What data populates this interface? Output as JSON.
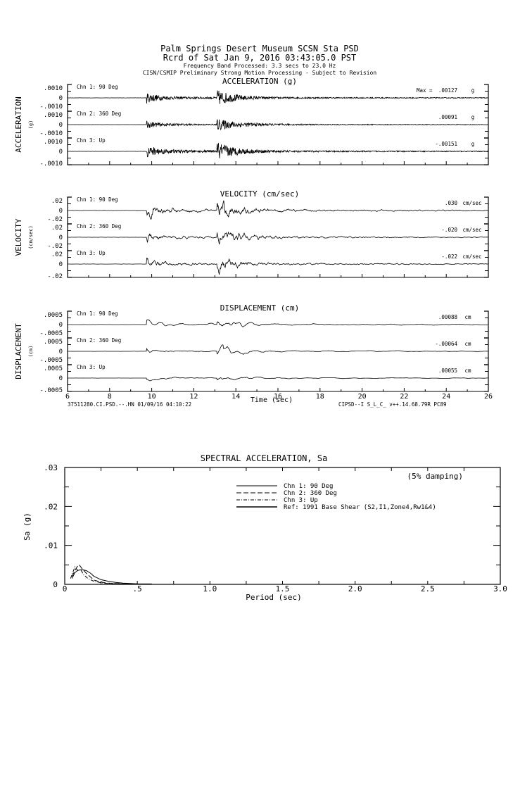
{
  "header": {
    "line1": "Palm Springs Desert Museum    SCSN Sta PSD",
    "line2": "Rcrd of Sat Jan  9, 2016 03:43:05.0 PST",
    "line3": "Frequency Band Processed: 3.3 secs to 23.0 Hz",
    "line4": "CISN/CSMIP Preliminary Strong Motion Processing - Subject to Revision"
  },
  "footer": {
    "left": "37511280.CI.PSD.--.HN 01/09/16 04:10:22",
    "right": "CIPSD--I  S_L_C_  v++.14.68.79R PC89"
  },
  "chart_data": [
    {
      "type": "line",
      "title": "ACCELERATION (g)",
      "ylabel": "ACCELERATION",
      "yunit": "(g)",
      "xlabel": "Time (sec)",
      "xlim": [
        6,
        26
      ],
      "xticks": [
        "6",
        "8",
        "10",
        "12",
        "14",
        "16",
        "18",
        "20",
        "22",
        "24",
        "26"
      ],
      "yticks": [
        ".0010",
        "0",
        "-.0010"
      ],
      "ylim": [
        -0.001,
        0.001
      ],
      "max_prefix": "Max =",
      "channels": [
        {
          "name": "Chn 1: 90 Deg",
          "max": ".00127",
          "unit": "g",
          "peak": 0.00127
        },
        {
          "name": "Chn 2: 360 Deg",
          "max": ".00091",
          "unit": "g",
          "peak": 0.00091
        },
        {
          "name": "Chn 3: Up",
          "max": "-.00151",
          "unit": "g",
          "peak": -0.00151
        }
      ]
    },
    {
      "type": "line",
      "title": "VELOCITY (cm/sec)",
      "ylabel": "VELOCITY",
      "yunit": "(cm/sec)",
      "xlim": [
        6,
        26
      ],
      "yticks": [
        ".02",
        "0",
        "-.02"
      ],
      "ylim": [
        -0.02,
        0.02
      ],
      "channels": [
        {
          "name": "Chn 1: 90 Deg",
          "max": ".030",
          "unit": "cm/sec",
          "peak": 0.03
        },
        {
          "name": "Chn 2: 360 Deg",
          "max": "-.020",
          "unit": "cm/sec",
          "peak": -0.02
        },
        {
          "name": "Chn 3: Up",
          "max": "-.022",
          "unit": "cm/sec",
          "peak": -0.022
        }
      ]
    },
    {
      "type": "line",
      "title": "DISPLACEMENT (cm)",
      "ylabel": "DISPLACEMENT",
      "yunit": "(cm)",
      "xlim": [
        6,
        26
      ],
      "yticks": [
        ".0005",
        "0",
        "-.0005"
      ],
      "ylim": [
        -0.0005,
        0.0005
      ],
      "channels": [
        {
          "name": "Chn 1: 90 Deg",
          "max": ".00088",
          "unit": "cm",
          "peak": 0.00088
        },
        {
          "name": "Chn 2: 360 Deg",
          "max": "-.00064",
          "unit": "cm",
          "peak": -0.00064
        },
        {
          "name": "Chn 3: Up",
          "max": ".00055",
          "unit": "cm",
          "peak": 0.00055
        }
      ]
    },
    {
      "type": "line",
      "title": "SPECTRAL ACCELERATION, Sa",
      "xlabel": "Period (sec)",
      "ylabel": "Sa  (g)",
      "xlim": [
        0,
        3.0
      ],
      "ylim": [
        0,
        0.03
      ],
      "xticks": [
        "0",
        ".5",
        "1.0",
        "1.5",
        "2.0",
        "2.5",
        "3.0"
      ],
      "yticks": [
        ".03",
        ".02",
        ".01",
        "0"
      ],
      "annotation": "(5% damping)",
      "legend": [
        "Chn 1: 90 Deg",
        "Chn 2: 360 Deg",
        "Chn 3: Up",
        "Ref: 1991 Base Shear (S2,I1,Zone4,Rw1&4)"
      ],
      "series": [
        {
          "name": "Chn 1: 90 Deg",
          "style": "solid",
          "x": [
            0.05,
            0.07,
            0.09,
            0.12,
            0.15,
            0.18,
            0.2,
            0.25,
            0.3,
            0.35,
            0.4,
            0.5,
            0.6
          ],
          "y": [
            0.0015,
            0.003,
            0.0036,
            0.0038,
            0.0035,
            0.0028,
            0.0021,
            0.0012,
            0.0008,
            0.0005,
            0.0003,
            0.00015,
            0.0001
          ]
        },
        {
          "name": "Chn 2: 360 Deg",
          "style": "dashed",
          "x": [
            0.05,
            0.07,
            0.09,
            0.1,
            0.12,
            0.15,
            0.18,
            0.2,
            0.25,
            0.3,
            0.4,
            0.5
          ],
          "y": [
            0.002,
            0.0035,
            0.0048,
            0.005,
            0.004,
            0.0028,
            0.0018,
            0.0011,
            0.0006,
            0.0003,
            0.00015,
            0.0001
          ]
        },
        {
          "name": "Chn 3: Up",
          "style": "dashdot",
          "x": [
            0.04,
            0.06,
            0.07,
            0.09,
            0.11,
            0.13,
            0.16,
            0.2,
            0.25,
            0.3,
            0.4,
            0.5
          ],
          "y": [
            0.0015,
            0.0035,
            0.0045,
            0.0035,
            0.0038,
            0.0025,
            0.0015,
            0.0008,
            0.0004,
            0.0002,
            0.0001,
            5e-05
          ]
        }
      ]
    }
  ]
}
